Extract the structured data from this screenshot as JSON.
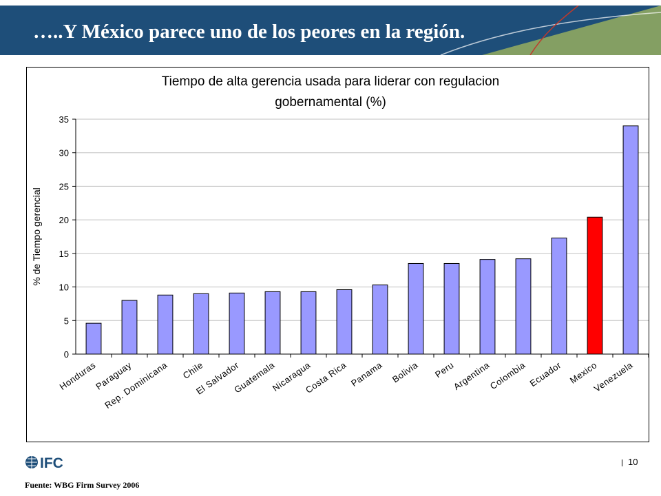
{
  "slide": {
    "title": "…..Y México parece uno de los peores en la región.",
    "page_number": "10",
    "source": "Fuente: WBG Firm Survey 2006",
    "logo_text": "IFC"
  },
  "colors": {
    "header_bg": "#1e4e79",
    "header_accent": "#8fa860",
    "bar_default": "#9999ff",
    "bar_highlight": "#ff0000"
  },
  "chart_data": {
    "type": "bar",
    "title_lines": [
      "Tiempo de alta gerencia usada para liderar con regulacion",
      "gobernamental (%)"
    ],
    "xlabel": "",
    "ylabel": "% de Tiempo gerencial",
    "ylim": [
      0,
      35
    ],
    "yticks": [
      0,
      5,
      10,
      15,
      20,
      25,
      30,
      35
    ],
    "grid": true,
    "legend": "none",
    "highlight": "Mexico",
    "categories": [
      "Honduras",
      "Paraguay",
      "Rep. Dominicana",
      "Chile",
      "El Salvador",
      "Guatemala",
      "Nicaragua",
      "Costa Rica",
      "Panama",
      "Bolivia",
      "Peru",
      "Argentina",
      "Colombia",
      "Ecuador",
      "Mexico",
      "Venezuela"
    ],
    "values": [
      4.6,
      8.0,
      8.8,
      9.0,
      9.1,
      9.3,
      9.3,
      9.6,
      10.3,
      13.5,
      13.5,
      14.1,
      14.2,
      17.3,
      20.4,
      34.0
    ]
  }
}
